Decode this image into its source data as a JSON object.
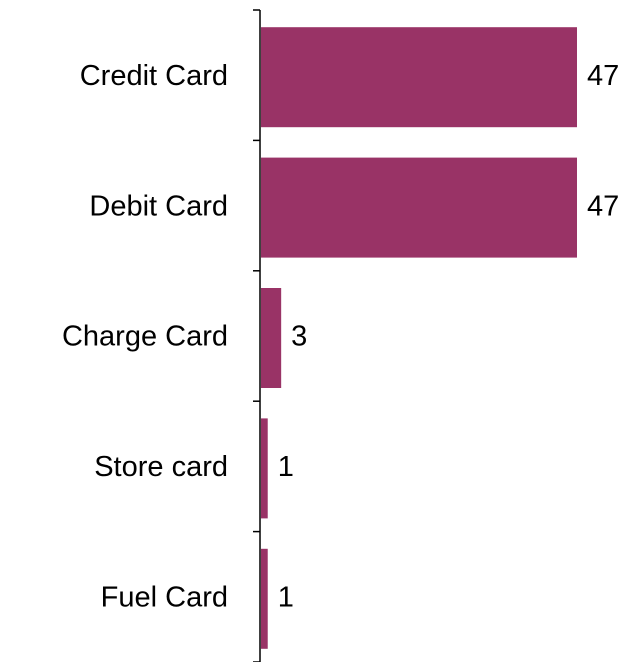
{
  "chart_data": {
    "type": "bar",
    "orientation": "horizontal",
    "categories": [
      "Credit Card",
      "Debit Card",
      "Charge Card",
      "Store card",
      "Fuel Card"
    ],
    "values": [
      47,
      47,
      3,
      1,
      1
    ],
    "color": "#993366"
  }
}
